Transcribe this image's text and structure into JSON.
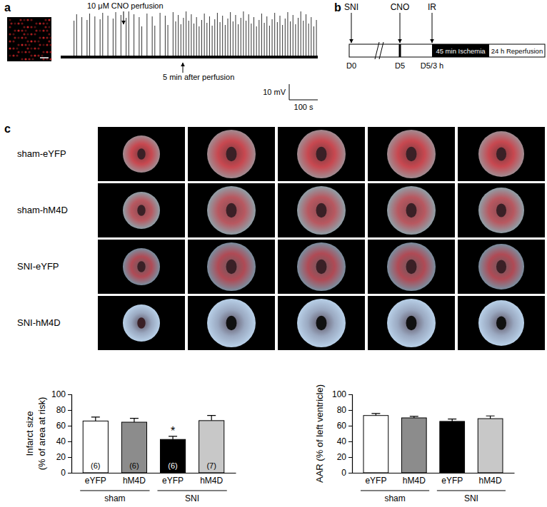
{
  "panel_labels": [
    "a",
    "b",
    "c"
  ],
  "recording": {
    "annotations": [
      "10 μM CNO perfusion",
      "5 min after perfusion"
    ],
    "scale_y": "10 mV",
    "scale_x": "100 s"
  },
  "timeline": {
    "events": [
      "SNI",
      "CNO",
      "IR"
    ],
    "days": [
      "D0",
      "D5",
      "D5/3 h"
    ],
    "phases": [
      "45 min Ischemia",
      "24 h Reperfusion"
    ]
  },
  "images": {
    "rows": [
      "sham-eYFP",
      "sham-hM4D",
      "SNI-eYFP",
      "SNI-hM4D"
    ]
  },
  "chart_data": [
    {
      "type": "bar",
      "ylabel": [
        "Infarct size",
        "(% of area at risk)"
      ],
      "categories": [
        "eYFP",
        "hM4D",
        "eYFP",
        "hM4D"
      ],
      "group_labels": [
        "sham",
        "SNI"
      ],
      "values": [
        66,
        64.5,
        42.5,
        66.5
      ],
      "errors": [
        5,
        5,
        4,
        6.5
      ],
      "n_labels": [
        "(6)",
        "(6)",
        "(6)",
        "(7)"
      ],
      "significance_labels": [
        null,
        null,
        "*",
        null
      ],
      "colors": [
        "#ffffff",
        "#8c8c8c",
        "#000000",
        "#c8c8c8"
      ],
      "ylim": [
        0,
        100
      ],
      "yticks": [
        0,
        20,
        40,
        60,
        80,
        100
      ]
    },
    {
      "type": "bar",
      "ylabel": [
        "AAR (% of left ventricle)"
      ],
      "categories": [
        "eYFP",
        "hM4D",
        "eYFP",
        "hM4D"
      ],
      "group_labels": [
        "sham",
        "SNI"
      ],
      "values": [
        73,
        70,
        65.5,
        69
      ],
      "errors": [
        2.5,
        2,
        3,
        3.5
      ],
      "colors": [
        "#ffffff",
        "#8c8c8c",
        "#000000",
        "#c8c8c8"
      ],
      "ylim": [
        0,
        100
      ],
      "yticks": [
        0,
        20,
        40,
        60,
        80,
        100
      ]
    }
  ]
}
